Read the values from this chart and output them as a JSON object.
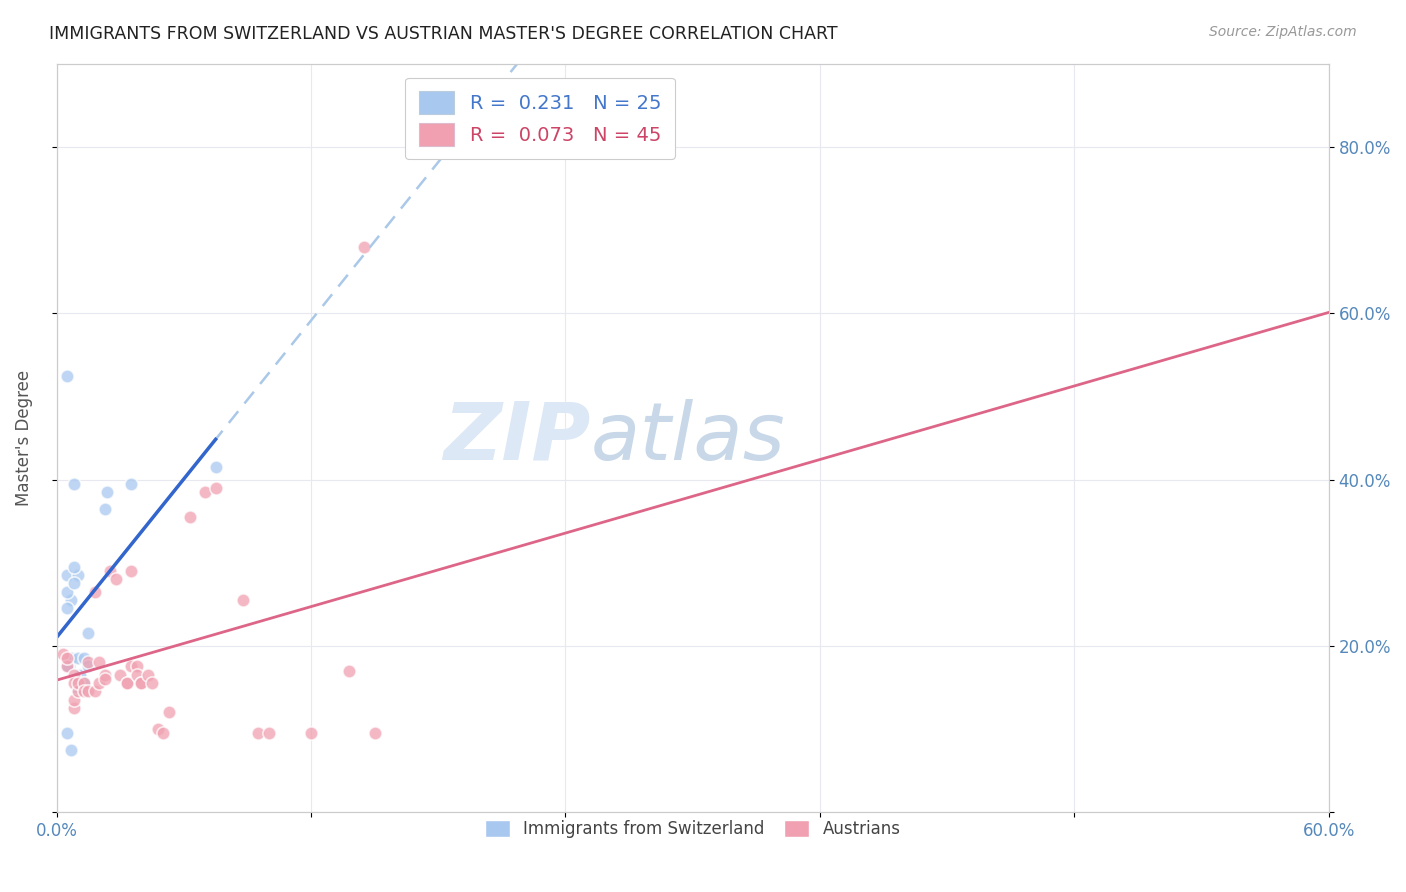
{
  "title": "IMMIGRANTS FROM SWITZERLAND VS AUSTRIAN MASTER'S DEGREE CORRELATION CHART",
  "source": "Source: ZipAtlas.com",
  "ylabel": "Master's Degree",
  "legend_blue_label": "Immigrants from Switzerland",
  "legend_pink_label": "Austrians",
  "legend_blue_R": "R =  0.231",
  "legend_blue_N": "N = 25",
  "legend_pink_R": "R =  0.073",
  "legend_pink_N": "N = 45",
  "blue_color": "#a8c8f0",
  "pink_color": "#f0a0b0",
  "trendline_blue_color": "#3366cc",
  "trendline_pink_color": "#dd6688",
  "trendline_dashed_color": "#aac8e8",
  "watermark_color": "#dce8f5",
  "background_color": "#ffffff",
  "grid_color": "#e8e8f0",
  "blue_scatter_x": [
    0.005,
    0.01,
    0.008,
    0.007,
    0.005,
    0.005,
    0.008,
    0.006,
    0.005,
    0.007,
    0.01,
    0.013,
    0.011,
    0.015,
    0.01,
    0.013,
    0.015,
    0.023,
    0.024,
    0.005,
    0.008,
    0.035,
    0.075,
    0.005,
    0.007
  ],
  "blue_scatter_y": [
    0.285,
    0.285,
    0.295,
    0.255,
    0.245,
    0.265,
    0.275,
    0.175,
    0.175,
    0.185,
    0.185,
    0.185,
    0.165,
    0.175,
    0.145,
    0.155,
    0.215,
    0.365,
    0.385,
    0.525,
    0.395,
    0.395,
    0.415,
    0.095,
    0.075
  ],
  "pink_scatter_x": [
    0.003,
    0.005,
    0.005,
    0.008,
    0.008,
    0.008,
    0.008,
    0.01,
    0.01,
    0.013,
    0.013,
    0.015,
    0.015,
    0.018,
    0.018,
    0.02,
    0.02,
    0.023,
    0.023,
    0.025,
    0.028,
    0.03,
    0.033,
    0.033,
    0.035,
    0.035,
    0.038,
    0.038,
    0.04,
    0.04,
    0.043,
    0.045,
    0.048,
    0.05,
    0.053,
    0.063,
    0.07,
    0.075,
    0.088,
    0.095,
    0.1,
    0.12,
    0.138,
    0.15,
    0.145
  ],
  "pink_scatter_y": [
    0.19,
    0.175,
    0.185,
    0.165,
    0.125,
    0.155,
    0.135,
    0.145,
    0.155,
    0.155,
    0.145,
    0.18,
    0.145,
    0.145,
    0.265,
    0.18,
    0.155,
    0.165,
    0.16,
    0.29,
    0.28,
    0.165,
    0.155,
    0.155,
    0.175,
    0.29,
    0.175,
    0.165,
    0.155,
    0.155,
    0.165,
    0.155,
    0.1,
    0.095,
    0.12,
    0.355,
    0.385,
    0.39,
    0.255,
    0.095,
    0.095,
    0.095,
    0.17,
    0.095,
    0.68
  ],
  "xlim": [
    0.0,
    0.6
  ],
  "ylim": [
    0.0,
    0.9
  ],
  "xtick_positions": [
    0.0,
    0.12,
    0.24,
    0.36,
    0.48,
    0.6
  ],
  "ytick_positions": [
    0.0,
    0.2,
    0.4,
    0.6,
    0.8
  ],
  "scatter_size": 90,
  "scatter_alpha": 0.75,
  "scatter_linewidth": 1.2
}
